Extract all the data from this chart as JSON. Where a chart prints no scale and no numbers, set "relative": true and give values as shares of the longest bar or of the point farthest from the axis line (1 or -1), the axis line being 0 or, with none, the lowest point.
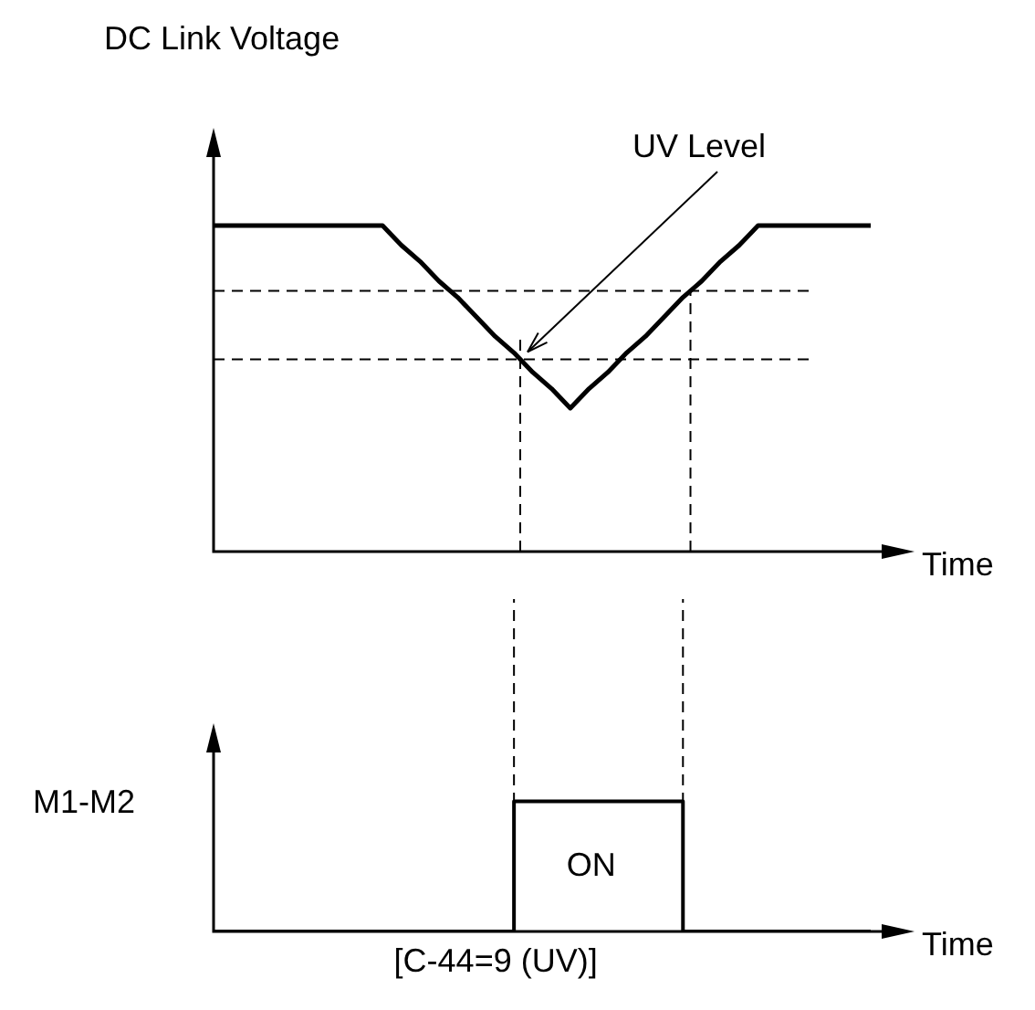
{
  "chart_data": [
    {
      "type": "line",
      "relative": true,
      "ylabel": "DC Link Voltage",
      "xlabel": "Time",
      "categories": [
        null,
        null,
        null,
        null,
        null,
        null,
        null,
        null,
        null,
        null,
        null,
        null,
        null,
        null,
        null,
        null,
        null,
        null,
        null,
        null,
        null,
        null,
        null,
        null,
        null,
        null,
        null,
        null,
        null,
        null,
        null,
        null,
        null,
        null,
        null,
        null
      ],
      "values": [
        1,
        1,
        1,
        1,
        1,
        1,
        1,
        1,
        1,
        1,
        0.94,
        0.89,
        0.83,
        0.78,
        0.72,
        0.66,
        0.61,
        0.55,
        0.5,
        0.44,
        0.5,
        0.55,
        0.61,
        0.66,
        0.72,
        0.78,
        0.83,
        0.89,
        0.94,
        1,
        1,
        1,
        1,
        1,
        1,
        1
      ],
      "color": "#000000",
      "ref_lines": [
        {
          "axis": "y",
          "value": 0.8,
          "line_style": "dashed"
        },
        {
          "axis": "y",
          "value": 0.59,
          "line_style": "dashed"
        }
      ],
      "annotations": [
        "UV Level"
      ]
    },
    {
      "type": "step",
      "relative": true,
      "ylabel": "M1-M2",
      "xlabel": "Time",
      "categories": [
        null,
        null,
        null,
        null,
        null,
        null,
        null,
        null,
        null,
        null,
        null,
        null,
        null,
        null,
        null,
        null,
        null,
        null,
        null,
        null,
        null,
        null,
        null,
        null,
        null,
        null,
        null,
        null,
        null,
        null,
        null,
        null,
        null,
        null,
        null,
        null
      ],
      "values": [
        0,
        0,
        0,
        0,
        0,
        0,
        0,
        0,
        0,
        0,
        0,
        0,
        0,
        0,
        0,
        0,
        1,
        1,
        1,
        1,
        1,
        1,
        1,
        1,
        1,
        0,
        0,
        0,
        0,
        0,
        0,
        0,
        0,
        0,
        0,
        0
      ],
      "color": "#000000",
      "annotations": [
        "ON",
        "[C-44=9 (UV)]"
      ]
    }
  ]
}
